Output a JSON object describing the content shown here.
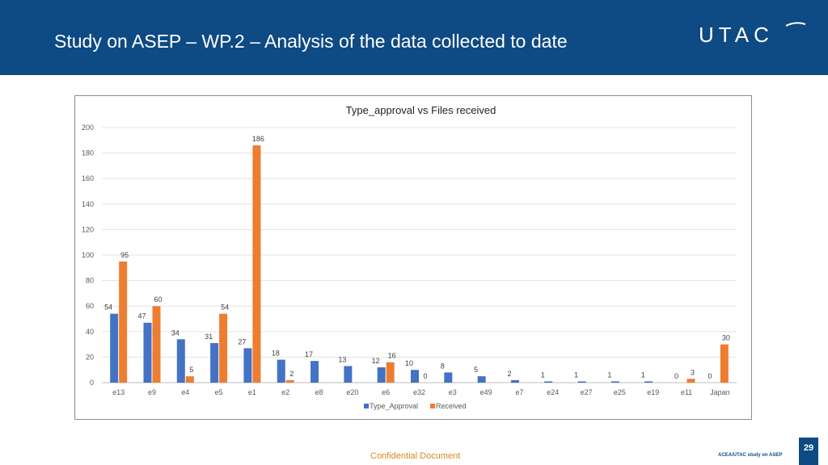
{
  "header": {
    "title": "Study on ASEP – WP.2 – Analysis of the data collected to date",
    "logo_text": "UTAC"
  },
  "footer": {
    "confidential": "Confidential Document",
    "page_number": "29",
    "study_label": "ACEA/UTAC study on ASEP"
  },
  "colors": {
    "header_bg": "#0e4a84",
    "series_type_approval": "#4472c4",
    "series_received": "#ed7d31",
    "footer_text": "#d4891c"
  },
  "chart_data": {
    "type": "bar",
    "title": "Type_approval vs Files received",
    "xlabel": "",
    "ylabel": "",
    "ylim": [
      0,
      200
    ],
    "yticks": [
      0,
      20,
      40,
      60,
      80,
      100,
      120,
      140,
      160,
      180,
      200
    ],
    "grid": true,
    "legend_position": "bottom",
    "categories": [
      "e13",
      "e9",
      "e4",
      "e5",
      "e1",
      "e2",
      "e8",
      "e20",
      "e6",
      "e32",
      "e3",
      "e49",
      "e7",
      "e24",
      "e27",
      "e25",
      "e19",
      "e11",
      "Japan"
    ],
    "series": [
      {
        "name": "Type_Approval",
        "values": [
          54,
          47,
          34,
          31,
          27,
          18,
          17,
          13,
          12,
          10,
          8,
          5,
          2,
          1,
          1,
          1,
          1,
          0,
          0
        ],
        "labels": [
          "54",
          "47",
          "34",
          "31",
          "27",
          "18",
          "17",
          "13",
          "12",
          "10",
          "8",
          "5",
          "2",
          "1",
          "1",
          "1",
          "1",
          "0",
          "0"
        ]
      },
      {
        "name": "Received",
        "values": [
          95,
          60,
          5,
          54,
          186,
          2,
          null,
          null,
          16,
          0,
          null,
          null,
          null,
          null,
          null,
          null,
          null,
          3,
          30
        ],
        "labels": [
          "95",
          "60",
          "5",
          "54",
          "186",
          "2",
          null,
          null,
          "16",
          "0",
          null,
          null,
          null,
          null,
          null,
          null,
          null,
          "3",
          "30"
        ]
      }
    ]
  }
}
